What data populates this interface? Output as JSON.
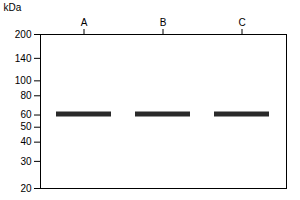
{
  "chart_data": {
    "type": "scatter",
    "marker": "band",
    "categories": [
      "A",
      "B",
      "C"
    ],
    "values": [
      61,
      61,
      61
    ],
    "color": "#2a2a2a",
    "ylabel": "kDa",
    "log": "y",
    "ylim": [
      20,
      200
    ],
    "yticks": [
      200,
      140,
      100,
      80,
      60,
      50,
      40,
      30,
      20
    ],
    "grid": false
  }
}
